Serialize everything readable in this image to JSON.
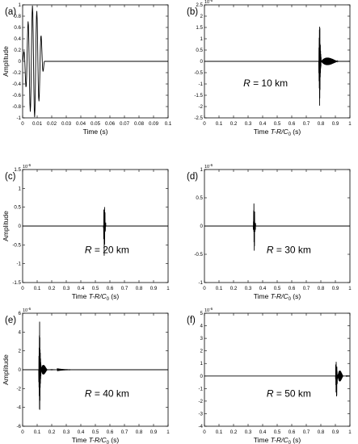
{
  "chart_data": [
    {
      "type": "line",
      "panel_label": "(a)",
      "title": "",
      "xlabel": "Time (s)",
      "ylabel": "Amplitude",
      "xlim": [
        0,
        0.1
      ],
      "ylim": [
        -1,
        1
      ],
      "xticks": [
        0,
        0.01,
        0.02,
        0.03,
        0.04,
        0.05,
        0.06,
        0.07,
        0.08,
        0.09,
        0.1
      ],
      "xticklabels": [
        "0",
        "0.01",
        "0.02",
        "0.03",
        "0.04",
        "0.05",
        "0.06",
        "0.07",
        "0.08",
        "0.09",
        "0.1"
      ],
      "yticks": [
        -1,
        -0.8,
        -0.6,
        -0.4,
        -0.2,
        0,
        0.2,
        0.4,
        0.6,
        0.8,
        1
      ],
      "yticklabels": [
        "-1",
        "-0.8",
        "-0.6",
        "-0.4",
        "-0.2",
        "0",
        "0.2",
        "0.4",
        "0.6",
        "0.8",
        "1"
      ],
      "exponent": "",
      "annotation": "",
      "signal": {
        "kind": "tone_burst",
        "t0": 0,
        "t1": 0.015,
        "cycles": 5,
        "amp": 1.0
      },
      "series": [
        {
          "x": [
            0,
            0.0015,
            0.003,
            0.0045,
            0.006,
            0.0075,
            0.009,
            0.0105,
            0.012,
            0.0135,
            0.015,
            0.1
          ],
          "y": [
            0,
            0.3,
            -0.5,
            0.5,
            -0.85,
            0.95,
            -0.9,
            0.8,
            -0.55,
            0.25,
            0,
            0
          ]
        }
      ],
      "grid": false
    },
    {
      "type": "line",
      "panel_label": "(b)",
      "title": "",
      "xlabel": "Time T-R/C0 (s)",
      "xlabel_parts": {
        "pre": "Time ",
        "italic": "T-R/C",
        "sub": "0",
        "post": " (s)"
      },
      "ylabel": "",
      "xlim": [
        0,
        1
      ],
      "ylim": [
        -2.5,
        2.5
      ],
      "xticks": [
        0,
        0.1,
        0.2,
        0.3,
        0.4,
        0.5,
        0.6,
        0.7,
        0.8,
        0.9,
        1
      ],
      "xticklabels": [
        "0",
        "0.1",
        "0.2",
        "0.3",
        "0.4",
        "0.5",
        "0.6",
        "0.7",
        "0.8",
        "0.9",
        "1"
      ],
      "yticks": [
        -2.5,
        -2,
        -1.5,
        -1,
        -0.5,
        0,
        0.5,
        1,
        1.5,
        2,
        2.5
      ],
      "yticklabels": [
        "-2.5",
        "-2",
        "-1.5",
        "-1",
        "-0.5",
        "0",
        "0.5",
        "1",
        "1.5",
        "2",
        "2.5"
      ],
      "exponent": "10",
      "exponent_power": "-6",
      "annotation": {
        "italic": "R",
        "rest": " = 10 km"
      },
      "signal": {
        "kind": "arrival",
        "t": 0.79,
        "amp": 2.4,
        "tail_amp": 0.3,
        "tail_len": 0.2
      },
      "grid": false
    },
    {
      "type": "line",
      "panel_label": "(c)",
      "title": "",
      "xlabel": "Time T-R/C0 (s)",
      "xlabel_parts": {
        "pre": "Time ",
        "italic": "T-R/C",
        "sub": "0",
        "post": " (s)"
      },
      "ylabel": "Amplitude",
      "xlim": [
        0,
        1
      ],
      "ylim": [
        -1.5,
        1.5
      ],
      "xticks": [
        0,
        0.1,
        0.2,
        0.3,
        0.4,
        0.5,
        0.6,
        0.7,
        0.8,
        0.9,
        1
      ],
      "xticklabels": [
        "0",
        "0.1",
        "0.2",
        "0.3",
        "0.4",
        "0.5",
        "0.6",
        "0.7",
        "0.8",
        "0.9",
        "1"
      ],
      "yticks": [
        -1.5,
        -1,
        -0.5,
        0,
        0.5,
        1,
        1.5
      ],
      "yticklabels": [
        "-1.5",
        "-1",
        "-0.5",
        "0",
        "0.5",
        "1",
        "1.5"
      ],
      "exponent": "10",
      "exponent_power": "-6",
      "annotation": {
        "italic": "R",
        "rest": " = 20 km"
      },
      "signal": {
        "kind": "arrival",
        "t": 0.56,
        "amp": 1.3,
        "tail_amp": 0.5,
        "tail_len": 0.06
      },
      "grid": false
    },
    {
      "type": "line",
      "panel_label": "(d)",
      "title": "",
      "xlabel": "Time T-R/C0 (s)",
      "xlabel_parts": {
        "pre": "Time ",
        "italic": "T-R/C",
        "sub": "0",
        "post": " (s)"
      },
      "ylabel": "",
      "xlim": [
        0,
        1
      ],
      "ylim": [
        -1,
        1
      ],
      "xticks": [
        0,
        0.1,
        0.2,
        0.3,
        0.4,
        0.5,
        0.6,
        0.7,
        0.8,
        0.9,
        1
      ],
      "xticklabels": [
        "0",
        "0.1",
        "0.2",
        "0.3",
        "0.4",
        "0.5",
        "0.6",
        "0.7",
        "0.8",
        "0.9",
        "1"
      ],
      "yticks": [
        -1,
        -0.5,
        0,
        0.5,
        1
      ],
      "yticklabels": [
        "-1",
        "-0.5",
        "0",
        "0.5",
        "1"
      ],
      "exponent": "10",
      "exponent_power": "-6",
      "annotation": {
        "italic": "R",
        "rest": " = 30 km"
      },
      "signal": {
        "kind": "arrival",
        "t": 0.34,
        "amp": 0.85,
        "tail_amp": 0.3,
        "tail_len": 0.07
      },
      "grid": false
    },
    {
      "type": "line",
      "panel_label": "(e)",
      "title": "",
      "xlabel": "Time T-R/C0 (s)",
      "xlabel_parts": {
        "pre": "Time ",
        "italic": "T-R/C",
        "sub": "0",
        "post": " (s)"
      },
      "ylabel": "Amplitude",
      "xlim": [
        0,
        1
      ],
      "ylim": [
        -6,
        6
      ],
      "xticks": [
        0,
        0.1,
        0.2,
        0.3,
        0.4,
        0.5,
        0.6,
        0.7,
        0.8,
        0.9,
        1
      ],
      "xticklabels": [
        "0",
        "0.1",
        "0.2",
        "0.3",
        "0.4",
        "0.5",
        "0.6",
        "0.7",
        "0.8",
        "0.9",
        "1"
      ],
      "yticks": [
        -6,
        -4,
        -2,
        0,
        2,
        4,
        6
      ],
      "yticklabels": [
        "-6",
        "-4",
        "-2",
        "0",
        "2",
        "4",
        "6"
      ],
      "exponent": "10",
      "exponent_power": "-6",
      "annotation": {
        "italic": "R",
        "rest": " = 40 km"
      },
      "signal": {
        "kind": "arrival",
        "t": 0.115,
        "amp": 5.7,
        "tail_amp": 1.3,
        "tail_len": 0.08
      },
      "grid": false
    },
    {
      "type": "line",
      "panel_label": "(f)",
      "title": "",
      "xlabel": "Time T-R/C0 (s)",
      "xlabel_parts": {
        "pre": "Time ",
        "italic": "T-R/C",
        "sub": "0",
        "post": " (s)"
      },
      "ylabel": "",
      "xlim": [
        0,
        1
      ],
      "ylim": [
        -4,
        5
      ],
      "xticks": [
        0,
        0.1,
        0.2,
        0.3,
        0.4,
        0.5,
        0.6,
        0.7,
        0.8,
        0.9,
        1
      ],
      "xticklabels": [
        "0",
        "0.1",
        "0.2",
        "0.3",
        "0.4",
        "0.5",
        "0.6",
        "0.7",
        "0.8",
        "0.9",
        "1"
      ],
      "yticks": [
        -4,
        -3,
        -2,
        -1,
        0,
        1,
        2,
        3,
        4,
        5
      ],
      "yticklabels": [
        "-4",
        "-3",
        "-2",
        "-1",
        "0",
        "1",
        "2",
        "3",
        "4",
        "5"
      ],
      "exponent": "10",
      "exponent_power": "-6",
      "annotation": {
        "italic": "R",
        "rest": " = 50 km"
      },
      "signal": {
        "kind": "arrival",
        "t": 0.905,
        "amp": 4.2,
        "tail_amp": 1.1,
        "tail_len": 0.07
      },
      "grid": false
    }
  ]
}
